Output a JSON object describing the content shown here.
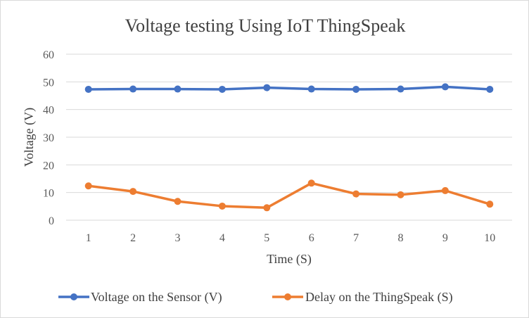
{
  "chart_data": {
    "type": "line",
    "title": "Voltage testing Using IoT ThingSpeak",
    "xlabel": "Time (S)",
    "ylabel": "Voltage (V)",
    "categories": [
      "1",
      "2",
      "3",
      "4",
      "5",
      "6",
      "7",
      "8",
      "9",
      "10"
    ],
    "ylim": [
      0,
      60
    ],
    "yticks": [
      "0",
      "10",
      "20",
      "30",
      "40",
      "50",
      "60"
    ],
    "grid": true,
    "legend_position": "bottom",
    "series": [
      {
        "name": "Voltage on the Sensor (V)",
        "color": "#4472c4",
        "values": [
          47.3,
          47.4,
          47.4,
          47.3,
          47.9,
          47.4,
          47.3,
          47.4,
          48.2,
          47.3
        ]
      },
      {
        "name": "Delay on the ThingSpeak (S)",
        "color": "#ed7d31",
        "values": [
          12.4,
          10.4,
          6.8,
          5.1,
          4.5,
          13.4,
          9.5,
          9.2,
          10.7,
          5.8
        ]
      }
    ]
  }
}
